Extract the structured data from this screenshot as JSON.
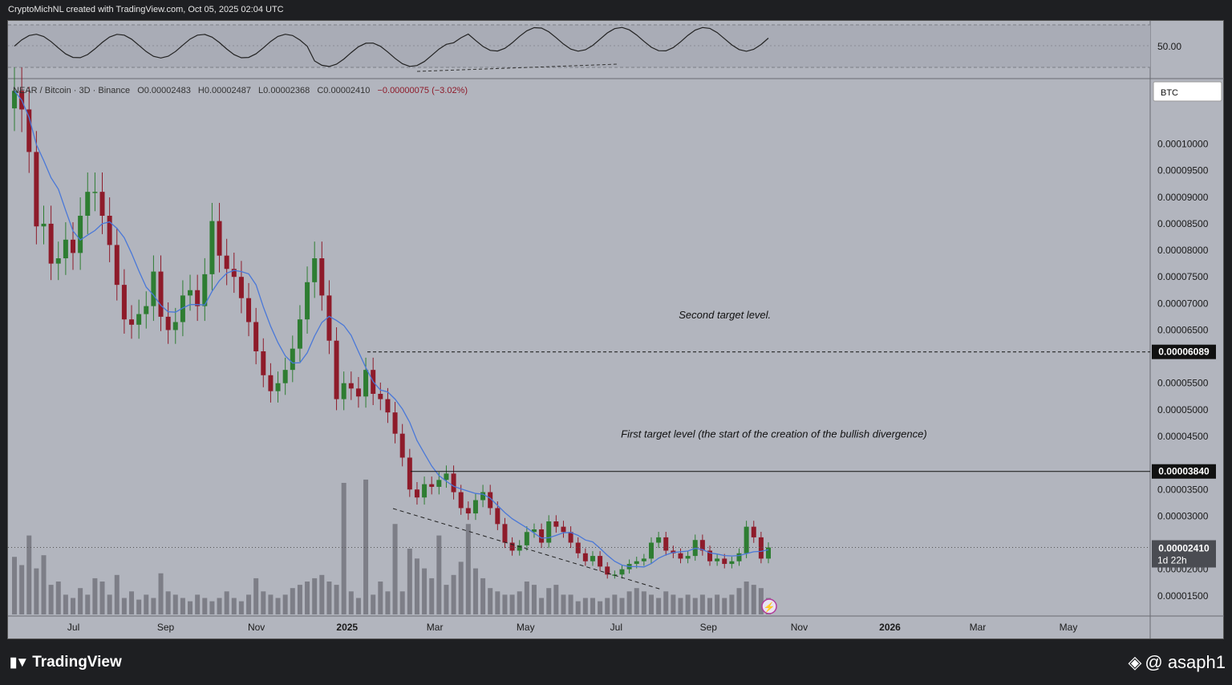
{
  "caption": "CryptoMichNL created with TradingView.com, Oct 05, 2025 02:04 UTC",
  "footer": {
    "brand": "TradingView",
    "credit": "@ asaph1"
  },
  "colors": {
    "bull": "#2e7d32",
    "bear": "#8e1b2a",
    "ma": "#4a78d8",
    "volume": "#6f7079",
    "background": "#b2b5be"
  },
  "legend": {
    "symbol": "NEAR / Bitcoin · 3D · Binance",
    "open": "O0.00002483",
    "high": "H0.00002487",
    "low": "L0.00002368",
    "close": "C0.00002410",
    "change": "−0.00000075 (−3.02%)"
  },
  "rsi_label": "50.00",
  "currency_badge": "BTC",
  "chart_data": {
    "type": "candlestick",
    "y_tick_labels": [
      "0.00010000",
      "0.00009500",
      "0.00009000",
      "0.00008500",
      "0.00008000",
      "0.00007500",
      "0.00007000",
      "0.00006500",
      "0.00005500",
      "0.00005000",
      "0.00004500",
      "0.00003500",
      "0.00003000",
      "0.00002000",
      "0.00001500"
    ],
    "ylim": [
      1.15e-05,
      0.000112
    ],
    "x_tick_labels": [
      "Jul",
      "Sep",
      "Nov",
      "2025",
      "Mar",
      "May",
      "Jul",
      "Sep",
      "Nov",
      "2026",
      "Mar",
      "May"
    ],
    "x_tick_bold": [
      false,
      false,
      false,
      true,
      false,
      false,
      false,
      false,
      false,
      true,
      false,
      false
    ],
    "x_ticks_date": [
      "2024-07-01",
      "2024-09-01",
      "2024-11-01",
      "2025-01-01",
      "2025-03-01",
      "2025-05-01",
      "2025-07-01",
      "2025-09-01",
      "2025-11-01",
      "2026-01-01",
      "2026-03-01",
      "2026-05-01"
    ],
    "price_line_labels": [
      {
        "value": 6.089e-05,
        "label": "0.00006089"
      },
      {
        "value": 3.84e-05,
        "label": "0.00003840"
      }
    ],
    "current_price": {
      "value": 2.41e-05,
      "label": "0.00002410",
      "countdown": "1d 22h"
    },
    "annotations": [
      {
        "text": "Second target level.",
        "date": "2025-09-12",
        "value": 6.72e-05
      },
      {
        "text": "First target level (the start of the creation of the bullish divergence)",
        "date": "2025-10-15",
        "value": 4.48e-05
      }
    ],
    "closes": [
      0.00011,
      0.0001065,
      9.85e-05,
      8.45e-05,
      8.5e-05,
      7.75e-05,
      7.85e-05,
      8.2e-05,
      7.95e-05,
      8.65e-05,
      9.1e-05,
      9.1e-05,
      8.65e-05,
      8.1e-05,
      7.35e-05,
      6.7e-05,
      6.6e-05,
      6.8e-05,
      6.95e-05,
      7.6e-05,
      6.75e-05,
      6.5e-05,
      6.65e-05,
      7.15e-05,
      7.25e-05,
      6.95e-05,
      7.55e-05,
      8.55e-05,
      7.9e-05,
      7.65e-05,
      7.5e-05,
      7.1e-05,
      6.65e-05,
      6.1e-05,
      5.65e-05,
      5.35e-05,
      5.5e-05,
      5.75e-05,
      6.15e-05,
      6.7e-05,
      7.4e-05,
      7.85e-05,
      7.15e-05,
      6.3e-05,
      5.2e-05,
      5.5e-05,
      5.4e-05,
      5.25e-05,
      5.75e-05,
      5.3e-05,
      5.2e-05,
      4.95e-05,
      4.55e-05,
      4.1e-05,
      3.5e-05,
      3.35e-05,
      3.6e-05,
      3.55e-05,
      3.68e-05,
      3.8e-05,
      3.45e-05,
      3.15e-05,
      3.05e-05,
      3.3e-05,
      3.45e-05,
      3.15e-05,
      2.85e-05,
      2.5e-05,
      2.35e-05,
      2.45e-05,
      2.7e-05,
      2.75e-05,
      2.5e-05,
      2.9e-05,
      2.8e-05,
      2.7e-05,
      2.5e-05,
      2.3e-05,
      2.15e-05,
      2.25e-05,
      2.05e-05,
      1.9e-05,
      1.9e-05,
      2e-05,
      2.1e-05,
      2.15e-05,
      2.2e-05,
      2.5e-05,
      2.6e-05,
      2.35e-05,
      2.3e-05,
      2.2e-05,
      2.25e-05,
      2.55e-05,
      2.35e-05,
      2.15e-05,
      2.2e-05,
      2.1e-05,
      2.15e-05,
      2.3e-05,
      2.8e-05,
      2.6e-05,
      2.2e-05,
      2.41e-05
    ],
    "volumes": [
      35,
      30,
      48,
      28,
      36,
      18,
      20,
      12,
      10,
      16,
      12,
      22,
      20,
      12,
      24,
      10,
      14,
      9,
      12,
      10,
      25,
      14,
      12,
      10,
      8,
      12,
      10,
      8,
      10,
      14,
      10,
      8,
      12,
      22,
      14,
      12,
      10,
      12,
      16,
      18,
      20,
      22,
      24,
      20,
      18,
      16,
      14,
      10,
      8,
      12,
      20,
      14,
      10,
      14,
      40,
      34,
      28,
      22,
      20,
      18,
      24,
      32,
      40,
      28,
      22,
      16,
      14,
      12,
      12,
      14,
      20,
      18,
      10,
      16,
      18,
      12,
      12,
      8,
      10,
      10,
      8,
      10,
      12,
      10,
      14,
      16,
      14,
      12,
      10,
      14,
      12,
      10,
      12,
      10,
      12,
      10,
      12,
      10,
      12,
      16,
      20,
      18,
      16,
      10
    ],
    "volume_spikes": [
      {
        "index": 45,
        "value": 80
      },
      {
        "index": 48,
        "value": 82
      },
      {
        "index": 52,
        "value": 55
      },
      {
        "index": 58,
        "value": 48
      },
      {
        "index": 62,
        "value": 55
      }
    ]
  }
}
